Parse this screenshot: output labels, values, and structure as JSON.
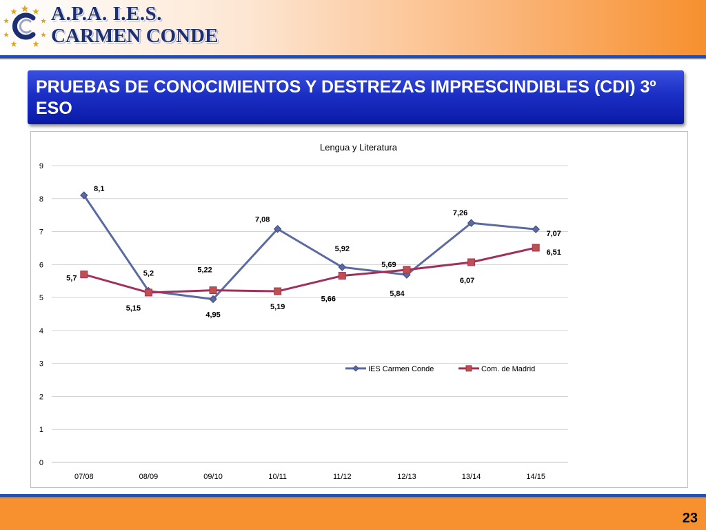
{
  "header": {
    "brand_line1": "A.P.A.  I.E.S.",
    "brand_line2": "CARMEN CONDE",
    "logo_icon": "apa-logo-stars-icon",
    "colors": {
      "band_start": "#ffffff",
      "band_end": "#f7902e",
      "brand_text": "#1d2f73",
      "rule": "#1f4fbf"
    }
  },
  "slide": {
    "title": "PRUEBAS DE CONOCIMIENTOS Y DESTREZAS IMPRESCINDIBLES (CDI) 3º ESO",
    "page_number": "23"
  },
  "chart_data": {
    "type": "line",
    "title": "Lengua y Literatura",
    "xlabel": "",
    "ylabel": "",
    "categories": [
      "07/08",
      "08/09",
      "09/10",
      "10/11",
      "11/12",
      "12/13",
      "13/14",
      "14/15"
    ],
    "ylim": [
      0,
      9
    ],
    "yticks": [
      "0",
      "1",
      "2",
      "3",
      "4",
      "5",
      "6",
      "7",
      "8",
      "9"
    ],
    "grid": true,
    "legend": "inside-right",
    "series": [
      {
        "name": "IES Carmen Conde",
        "color": "#5b6aa0",
        "marker": "diamond",
        "values": [
          8.1,
          5.2,
          4.95,
          7.08,
          5.92,
          5.69,
          7.26,
          7.07
        ],
        "labels": [
          "8,1",
          "5,2",
          "4,95",
          "7,08",
          "5,92",
          "5,69",
          "7,26",
          "7,07"
        ]
      },
      {
        "name": "Com. de Madrid",
        "color": "#a0305a",
        "marker": "square",
        "values": [
          5.7,
          5.15,
          5.22,
          5.19,
          5.66,
          5.84,
          6.07,
          6.51
        ],
        "labels": [
          "5,7",
          "5,15",
          "5,22",
          "5,19",
          "5,66",
          "5,84",
          "6,07",
          "6,51"
        ]
      }
    ]
  }
}
